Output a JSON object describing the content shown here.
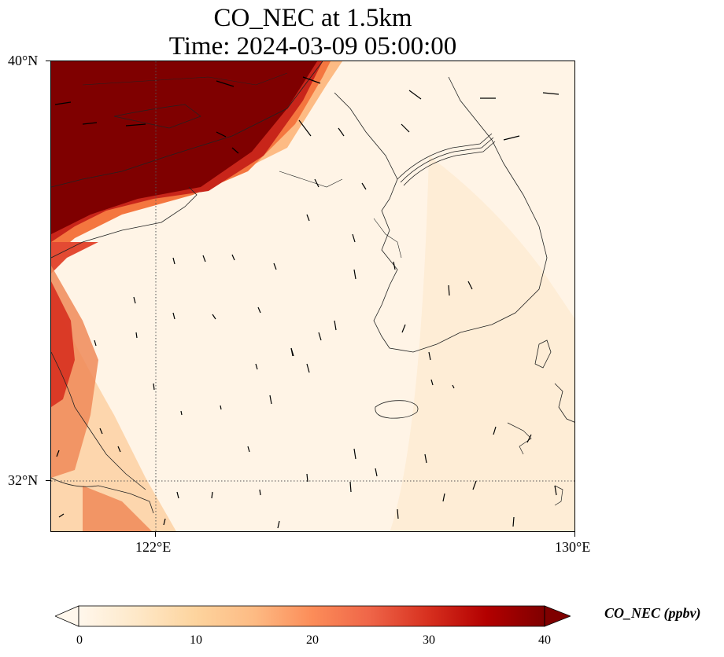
{
  "title": {
    "line1": "CO_NEC at 1.5km",
    "line2": "Time: 2024-03-09 05:00:00"
  },
  "map": {
    "variable": "CO_NEC",
    "level": "1.5km",
    "lon_range": [
      118,
      130
    ],
    "lat_range": [
      30.8,
      40
    ],
    "gridlines": {
      "lon": 122,
      "lat": 32,
      "style": "dotted"
    },
    "features": [
      "coastlines",
      "borders",
      "wind-vectors"
    ]
  },
  "axes": {
    "y_ticks": [
      "40°N",
      "32°N"
    ],
    "x_ticks": [
      "122°E",
      "130°E"
    ]
  },
  "colorbar": {
    "label": "CO_NEC (ppbv)",
    "ticks": [
      "0",
      "10",
      "20",
      "30",
      "40"
    ],
    "range": [
      0,
      40
    ],
    "extend": "both",
    "colormap": "OrRd",
    "colors": [
      "#fff7ec",
      "#fee8c8",
      "#fdd49e",
      "#fdbb84",
      "#fc8d59",
      "#ef6548",
      "#d7301f",
      "#b30000",
      "#7f0000"
    ]
  }
}
